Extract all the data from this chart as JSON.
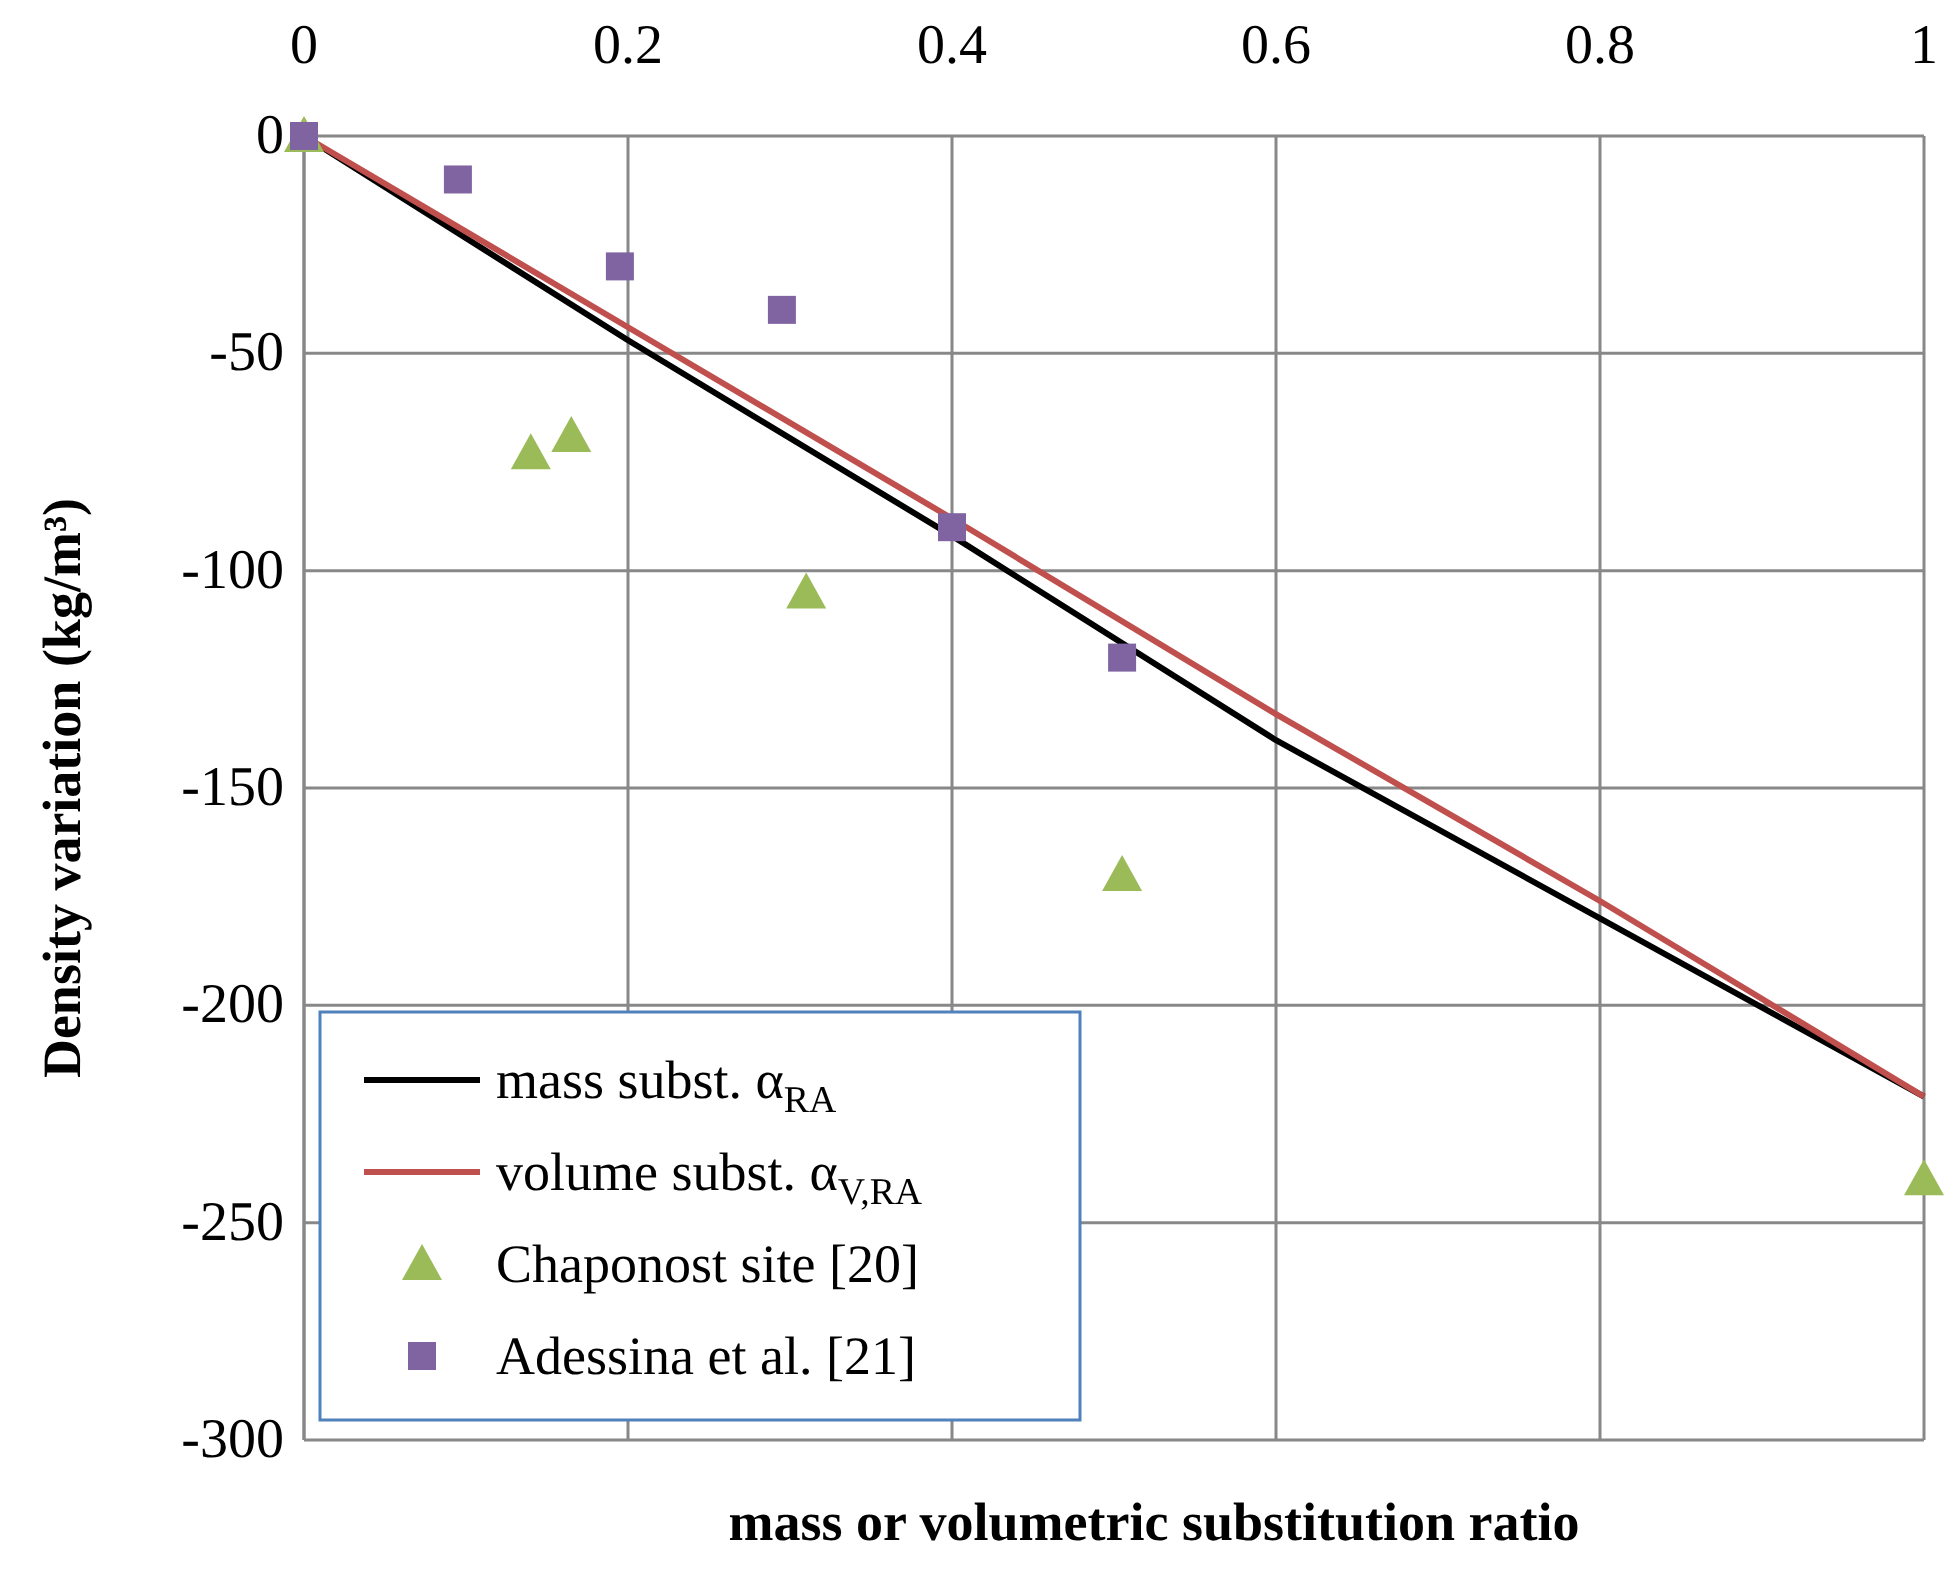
{
  "chart_data": {
    "type": "scatter",
    "xlabel": "mass or volumetric substitution ratio",
    "ylabel": "Density variation (kg/m³)",
    "xlim": [
      0,
      1
    ],
    "xticks": [
      0,
      0.2,
      0.4,
      0.6,
      0.8,
      1
    ],
    "ylim": [
      -300,
      0
    ],
    "yticks": [
      -300,
      -250,
      -200,
      -150,
      -100,
      -50,
      0
    ],
    "grid": true,
    "legend": "bottom left",
    "series": [
      {
        "name": "mass subst. α$_{RA}$",
        "type": "line",
        "color": "#000000",
        "x": [
          0,
          0.2,
          0.4,
          0.6,
          0.8,
          1
        ],
        "values": [
          0,
          -47,
          -92,
          -139,
          -180,
          -221
        ],
        "marker": "none"
      },
      {
        "name": "volume subst.  α$_{V,RA}$",
        "type": "line",
        "color": "#c0504d",
        "x": [
          0,
          0.2,
          0.4,
          0.6,
          0.8,
          1
        ],
        "values": [
          0,
          -44,
          -88,
          -133,
          -176,
          -221
        ],
        "marker": "none"
      },
      {
        "name": "Chaponost site [20]",
        "color": "#9bbb59",
        "x": [
          0,
          0.14,
          0.165,
          0.31,
          0.505,
          1
        ],
        "values": [
          0,
          -73,
          -69,
          -105,
          -170,
          -240
        ],
        "marker": "triangle"
      },
      {
        "name": "Adessina et al. [21]",
        "color": "#8064a2",
        "x": [
          0,
          0.095,
          0.195,
          0.295,
          0.4,
          0.505
        ],
        "values": [
          0,
          -10,
          -30,
          -40,
          -90,
          -120
        ],
        "marker": "square"
      }
    ]
  }
}
